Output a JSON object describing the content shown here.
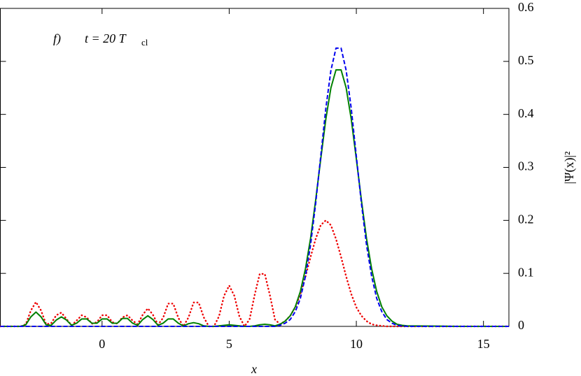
{
  "chart_data": {
    "type": "line",
    "annotation": {
      "label": "f)",
      "text": "t = 20 T",
      "subscript": "cl"
    },
    "xlabel": "x",
    "ylabel": "|Ψ(x)|²",
    "xlim": [
      -4,
      16
    ],
    "xticks": [
      0,
      5,
      10,
      15
    ],
    "ylim": [
      0,
      0.6
    ],
    "yticks": [
      0,
      0.1,
      0.2,
      0.3,
      0.4,
      0.5,
      0.6
    ],
    "y_axis_side": "right",
    "grid": false,
    "x": [
      -4,
      -3.8,
      -3.6,
      -3.4,
      -3.2,
      -3,
      -2.8,
      -2.6,
      -2.4,
      -2.2,
      -2,
      -1.8,
      -1.6,
      -1.4,
      -1.2,
      -1,
      -0.8,
      -0.6,
      -0.4,
      -0.2,
      0,
      0.2,
      0.4,
      0.6,
      0.8,
      1,
      1.2,
      1.4,
      1.6,
      1.8,
      2,
      2.2,
      2.4,
      2.6,
      2.8,
      3,
      3.2,
      3.4,
      3.6,
      3.8,
      4,
      4.2,
      4.4,
      4.6,
      4.8,
      5,
      5.2,
      5.4,
      5.6,
      5.8,
      6,
      6.2,
      6.4,
      6.6,
      6.8,
      7,
      7.2,
      7.4,
      7.6,
      7.8,
      8,
      8.2,
      8.4,
      8.6,
      8.8,
      9,
      9.2,
      9.4,
      9.6,
      9.8,
      10,
      10.2,
      10.4,
      10.6,
      10.8,
      11,
      11.2,
      11.4,
      11.6,
      11.8,
      12,
      14,
      16
    ],
    "series": [
      {
        "color": "#ee0000",
        "style": "dotted",
        "values": [
          0,
          0,
          0,
          0,
          0,
          0.004,
          0.03,
          0.046,
          0.03,
          0.004,
          0.006,
          0.021,
          0.026,
          0.014,
          0.002,
          0.011,
          0.021,
          0.017,
          0.005,
          0.008,
          0.021,
          0.021,
          0.008,
          0.005,
          0.017,
          0.021,
          0.011,
          0.004,
          0.022,
          0.034,
          0.022,
          0.003,
          0.016,
          0.043,
          0.043,
          0.016,
          0,
          0.017,
          0.045,
          0.045,
          0.017,
          0,
          0,
          0.019,
          0.058,
          0.077,
          0.058,
          0.019,
          0,
          0.013,
          0.059,
          0.099,
          0.099,
          0.059,
          0.013,
          0.004,
          0.01,
          0.02,
          0.036,
          0.061,
          0.094,
          0.131,
          0.165,
          0.191,
          0.2,
          0.191,
          0.165,
          0.131,
          0.094,
          0.061,
          0.036,
          0.02,
          0.01,
          0.004,
          0.002,
          0.001,
          0,
          0,
          0,
          0,
          0,
          0,
          0
        ]
      },
      {
        "color": "#008000",
        "style": "solid",
        "values": [
          0,
          0,
          0,
          0,
          0,
          0.003,
          0.018,
          0.027,
          0.018,
          0.003,
          0.002,
          0.012,
          0.018,
          0.012,
          0.002,
          0.006,
          0.014,
          0.014,
          0.006,
          0.006,
          0.014,
          0.014,
          0.006,
          0.006,
          0.015,
          0.015,
          0.006,
          0.002,
          0.013,
          0.02,
          0.013,
          0.002,
          0.006,
          0.014,
          0.014,
          0.006,
          0.001,
          0.005,
          0.007,
          0.005,
          0.001,
          0,
          0,
          0.001,
          0.002,
          0.003,
          0.002,
          0.001,
          0,
          0,
          0.001,
          0.003,
          0.004,
          0.003,
          0.001,
          0.004,
          0.01,
          0.02,
          0.037,
          0.066,
          0.109,
          0.166,
          0.238,
          0.316,
          0.391,
          0.45,
          0.484,
          0.484,
          0.45,
          0.391,
          0.316,
          0.238,
          0.166,
          0.109,
          0.066,
          0.037,
          0.02,
          0.01,
          0.004,
          0.002,
          0.001,
          0,
          0
        ]
      },
      {
        "color": "#0000ee",
        "style": "dashed",
        "values": [
          0,
          0,
          0,
          0,
          0,
          0,
          0,
          0,
          0,
          0,
          0,
          0,
          0,
          0,
          0,
          0,
          0,
          0,
          0,
          0,
          0,
          0,
          0,
          0,
          0,
          0,
          0,
          0,
          0,
          0,
          0,
          0,
          0,
          0,
          0,
          0,
          0,
          0,
          0,
          0,
          0,
          0,
          0,
          0,
          0,
          0,
          0,
          0,
          0,
          0,
          0,
          0,
          0,
          0,
          0,
          0.002,
          0.006,
          0.013,
          0.028,
          0.053,
          0.095,
          0.154,
          0.232,
          0.321,
          0.411,
          0.483,
          0.525,
          0.525,
          0.483,
          0.411,
          0.321,
          0.232,
          0.154,
          0.095,
          0.053,
          0.028,
          0.013,
          0.006,
          0.002,
          0.001,
          0,
          0,
          0
        ]
      }
    ]
  }
}
